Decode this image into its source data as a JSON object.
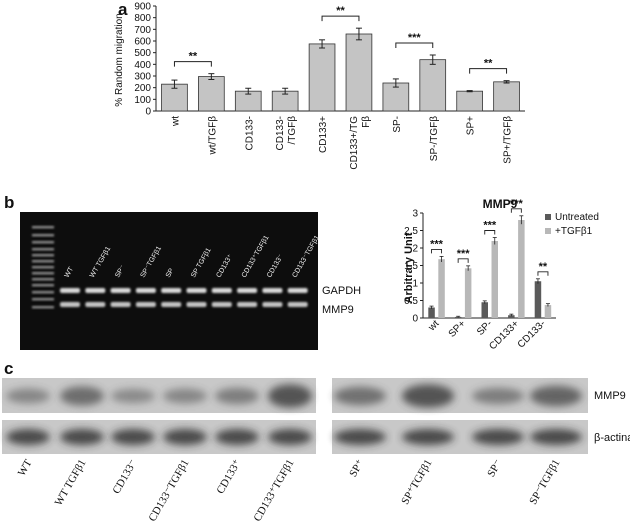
{
  "panel_labels": {
    "a": "a",
    "b": "b",
    "c": "c"
  },
  "colors": {
    "bar_a": "#c4c4c4",
    "untreated": "#5a5a5a",
    "tgf": "#b8b8b8",
    "gel_bg": "#0d0d0d",
    "blot_bg": "#c8c8c8"
  },
  "chart_data": [
    {
      "type": "bar",
      "panel": "a",
      "title": "",
      "ylabel": "% Random migration",
      "xlabel": "",
      "ylim": [
        0,
        900
      ],
      "yticks": [
        0,
        100,
        200,
        300,
        400,
        500,
        600,
        700,
        800,
        900
      ],
      "grid": false,
      "categories": [
        "wt",
        "wt/TGFβ",
        "CD133-",
        "CD133-/TGFβ",
        "CD133+",
        "CD133+/TGFβ",
        "SP-",
        "SP-/TGFβ",
        "SP+",
        "SP+/TGFβ"
      ],
      "category_lines": [
        [
          "wt"
        ],
        [
          "wt/TGFβ"
        ],
        [
          "CD133-"
        ],
        [
          "CD133-",
          "/TGFβ"
        ],
        [
          "CD133+"
        ],
        [
          "CD133+/TG",
          "Fβ"
        ],
        [
          "SP-"
        ],
        [
          "SP-/TGFβ"
        ],
        [
          "SP+"
        ],
        [
          "SP+/TGFβ"
        ]
      ],
      "values": [
        230,
        295,
        170,
        170,
        575,
        660,
        240,
        440,
        170,
        250
      ],
      "errors": [
        35,
        25,
        25,
        25,
        35,
        50,
        35,
        40,
        5,
        10
      ],
      "significance": [
        {
          "from": 0,
          "to": 1,
          "label": "**"
        },
        {
          "from": 4,
          "to": 5,
          "label": "**"
        },
        {
          "from": 6,
          "to": 7,
          "label": "***"
        },
        {
          "from": 8,
          "to": 9,
          "label": "**"
        }
      ]
    },
    {
      "type": "bar",
      "panel": "b",
      "title": "MMP9",
      "ylabel": "Arbitrary Unit",
      "xlabel": "",
      "ylim": [
        0,
        3
      ],
      "yticks": [
        0,
        0.5,
        1,
        1.5,
        2,
        2.5,
        3
      ],
      "ytick_labels": [
        "0",
        "0.5",
        "1",
        "1.5",
        "2",
        "2.5",
        "3"
      ],
      "grid": false,
      "legend_position": "top-right",
      "categories": [
        "wt",
        "SP+",
        "SP-",
        "CD133+",
        "CD133-"
      ],
      "series": [
        {
          "name": "Untreated",
          "values": [
            0.3,
            0.03,
            0.45,
            0.08,
            1.05
          ],
          "errors": [
            0.04,
            0.02,
            0.04,
            0.03,
            0.07
          ]
        },
        {
          "name": "+TGFβ1",
          "values": [
            1.68,
            1.42,
            2.2,
            2.8,
            0.37
          ],
          "errors": [
            0.08,
            0.07,
            0.1,
            0.12,
            0.04
          ]
        }
      ],
      "significance": [
        {
          "group": 0,
          "label": "***"
        },
        {
          "group": 1,
          "label": "***"
        },
        {
          "group": 2,
          "label": "***"
        },
        {
          "group": 3,
          "label": "***"
        },
        {
          "group": 4,
          "label": "**"
        }
      ]
    }
  ],
  "gel": {
    "lanes": [
      "WT",
      "WT TGFβ1",
      "SP⁻",
      "SP⁻TGFβ1",
      "SP",
      "SP TGFβ1",
      "CD133⁺",
      "CD133⁺TGFβ1",
      "CD133⁻",
      "CD133⁻TGFβ1"
    ],
    "band_labels": [
      "GAPDH",
      "MMP9"
    ]
  },
  "western": {
    "left_lanes": [
      "WT",
      "WT TGFβ1",
      "CD133⁻",
      "CD133⁻TGFβ1",
      "CD133⁺",
      "CD133⁺TGFβ1"
    ],
    "right_lanes": [
      "SP⁺",
      "SP⁺TGFβ1",
      "SP⁻",
      "SP⁻TGFβ1"
    ],
    "band_labels": [
      "MMP9",
      "β-actina"
    ]
  }
}
